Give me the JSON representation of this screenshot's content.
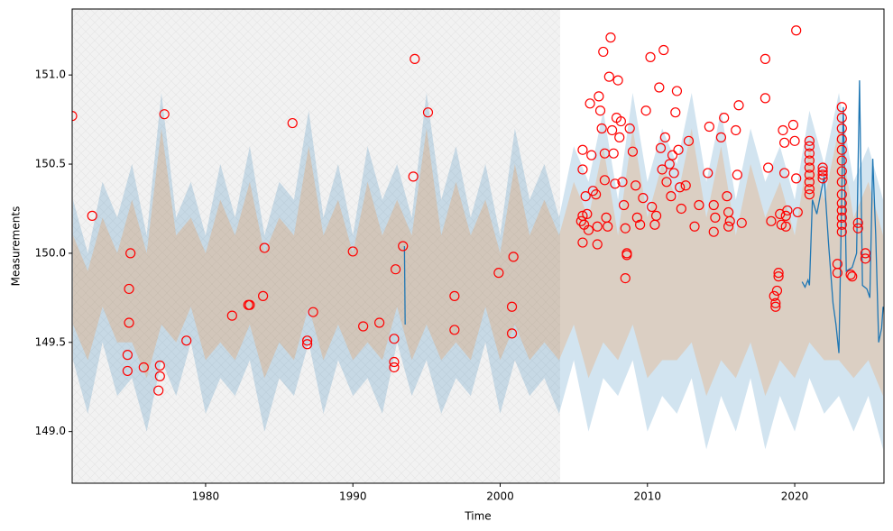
{
  "chart_data": {
    "type": "scatter",
    "xlabel": "Time",
    "ylabel": "Measurements",
    "xlim": [
      1970.94,
      2026.06
    ],
    "ylim": [
      148.71,
      151.37
    ],
    "xticks": [
      1980,
      1990,
      2000,
      2010,
      2020
    ],
    "yticks": [
      {
        "value": 149,
        "label": "149.0"
      },
      149.5,
      {
        "value": 150,
        "label": "150.0"
      },
      150.5,
      {
        "value": 151,
        "label": "151.0"
      }
    ],
    "span": {
      "x": [
        1970.94,
        2004.07
      ],
      "color": "#f2f2f2"
    },
    "series": [
      {
        "type": "band",
        "color": "#1f77b4",
        "x": [
          1971,
          1972,
          1973,
          1974,
          1975,
          1976,
          1977,
          1978,
          1979,
          1980,
          1981,
          1982,
          1983,
          1984,
          1985,
          1986,
          1987,
          1988,
          1989,
          1990,
          1991,
          1992,
          1993,
          1994,
          1995,
          1996,
          1997,
          1998,
          1999,
          2000,
          2001,
          2002,
          2003,
          2004,
          2005,
          2006,
          2007,
          2008,
          2009,
          2010,
          2011,
          2012,
          2013,
          2014,
          2015,
          2016,
          2017,
          2018,
          2019,
          2020,
          2021,
          2022,
          2023,
          2024,
          2025,
          2026
        ],
        "upper": [
          150.3,
          150.0,
          150.4,
          150.2,
          150.5,
          150.1,
          150.9,
          150.2,
          150.4,
          150.1,
          150.5,
          150.2,
          150.6,
          150.1,
          150.4,
          150.3,
          150.8,
          150.2,
          150.5,
          150.1,
          150.6,
          150.3,
          150.5,
          150.2,
          150.9,
          150.3,
          150.6,
          150.2,
          150.5,
          150.1,
          150.7,
          150.3,
          150.5,
          150.2,
          150.6,
          150.4,
          150.8,
          150.3,
          150.9,
          150.4,
          150.7,
          150.5,
          150.9,
          150.4,
          150.8,
          150.3,
          150.7,
          150.4,
          150.6,
          150.3,
          150.8,
          150.5,
          150.9,
          150.4,
          150.6,
          150.3
        ],
        "lower": [
          149.4,
          149.1,
          149.5,
          149.2,
          149.3,
          149.0,
          149.4,
          149.2,
          149.5,
          149.1,
          149.3,
          149.2,
          149.4,
          149.0,
          149.3,
          149.2,
          149.5,
          149.1,
          149.4,
          149.2,
          149.3,
          149.1,
          149.5,
          149.2,
          149.4,
          149.1,
          149.3,
          149.2,
          149.5,
          149.1,
          149.4,
          149.2,
          149.3,
          149.1,
          149.4,
          149.0,
          149.3,
          149.2,
          149.4,
          149.0,
          149.2,
          149.1,
          149.3,
          148.9,
          149.2,
          149.0,
          149.3,
          148.9,
          149.2,
          149.0,
          149.3,
          149.1,
          149.2,
          149.0,
          149.2,
          148.9
        ]
      },
      {
        "type": "band",
        "color": "#ff7f0e",
        "x": [
          1971,
          1972,
          1973,
          1974,
          1975,
          1976,
          1977,
          1978,
          1979,
          1980,
          1981,
          1982,
          1983,
          1984,
          1985,
          1986,
          1987,
          1988,
          1989,
          1990,
          1991,
          1992,
          1993,
          1994,
          1995,
          1996,
          1997,
          1998,
          1999,
          2000,
          2001,
          2002,
          2003,
          2004,
          2005,
          2006,
          2007,
          2008,
          2009,
          2010,
          2011,
          2012,
          2013,
          2014,
          2015,
          2016,
          2017,
          2018,
          2019,
          2020,
          2021,
          2022,
          2023,
          2024,
          2025,
          2026
        ],
        "upper": [
          150.1,
          149.9,
          150.2,
          150.0,
          150.3,
          150.0,
          150.7,
          150.1,
          150.2,
          150.0,
          150.3,
          150.1,
          150.4,
          150.0,
          150.2,
          150.1,
          150.6,
          150.1,
          150.3,
          150.0,
          150.4,
          150.1,
          150.3,
          150.1,
          150.7,
          150.1,
          150.4,
          150.1,
          150.3,
          150.0,
          150.5,
          150.1,
          150.3,
          150.1,
          150.4,
          150.2,
          150.6,
          150.1,
          150.7,
          150.2,
          150.5,
          150.3,
          150.7,
          150.2,
          150.6,
          150.1,
          150.5,
          150.2,
          150.4,
          150.1,
          150.6,
          150.3,
          150.7,
          150.2,
          150.4,
          150.1
        ],
        "lower": [
          149.6,
          149.4,
          149.7,
          149.5,
          149.5,
          149.3,
          149.6,
          149.5,
          149.7,
          149.4,
          149.5,
          149.4,
          149.6,
          149.3,
          149.5,
          149.4,
          149.7,
          149.4,
          149.6,
          149.4,
          149.5,
          149.4,
          149.7,
          149.4,
          149.6,
          149.4,
          149.5,
          149.4,
          149.7,
          149.4,
          149.6,
          149.4,
          149.5,
          149.4,
          149.6,
          149.3,
          149.5,
          149.4,
          149.6,
          149.3,
          149.4,
          149.4,
          149.5,
          149.2,
          149.4,
          149.3,
          149.5,
          149.2,
          149.4,
          149.3,
          149.5,
          149.4,
          149.4,
          149.3,
          149.4,
          149.2
        ]
      },
      {
        "type": "line",
        "color": "#1f77b4",
        "x": [
          1993.5,
          1993.55
        ],
        "values": [
          150.04,
          149.6
        ]
      },
      {
        "type": "line",
        "color": "#1f77b4",
        "x": [
          2020.5,
          2020.7,
          2020.9,
          2021.0,
          2021.2,
          2021.5,
          2021.8,
          2022.0,
          2022.3,
          2022.6,
          2022.8,
          2023.0,
          2023.1,
          2023.3,
          2023.5,
          2023.9,
          2024.2,
          2024.4,
          2024.6,
          2024.9,
          2025.1,
          2025.3,
          2025.5,
          2025.7,
          2025.9,
          2026.0
        ],
        "values": [
          149.84,
          149.81,
          149.85,
          149.82,
          150.3,
          150.22,
          150.35,
          150.43,
          150.05,
          149.72,
          149.6,
          149.44,
          149.9,
          150.82,
          149.9,
          149.92,
          150.0,
          150.97,
          149.82,
          149.8,
          149.75,
          150.53,
          150.1,
          149.5,
          149.58,
          149.7
        ]
      },
      {
        "type": "points",
        "color": "#ff0000",
        "x": [
          1970.94,
          1972.3,
          1974.9,
          1974.8,
          1974.8,
          1974.7,
          1974.7,
          1975.8,
          1976.8,
          1976.9,
          1976.9,
          1977.2,
          1978.7,
          1981.8,
          1982.9,
          1983.0,
          1984.0,
          1983.9,
          1985.9,
          1986.9,
          1986.9,
          1987.3,
          1990.0,
          1990.7,
          1991.8,
          1992.8,
          1992.8,
          1992.8,
          1992.9,
          1993.4,
          1994.1,
          1994.2,
          1995.1,
          1996.9,
          1996.9,
          1999.9,
          2000.9,
          2000.8,
          2000.8,
          2005.6,
          2005.5,
          2005.6,
          2005.6,
          2005.8,
          2005.9,
          2005.7,
          2006.0,
          2005.6,
          2006.1,
          2006.2,
          2006.3,
          2006.5,
          2006.6,
          2006.6,
          2006.7,
          2006.8,
          2006.9,
          2007.0,
          2007.1,
          2007.1,
          2007.2,
          2007.3,
          2007.4,
          2007.5,
          2007.6,
          2007.7,
          2007.8,
          2007.9,
          2008.0,
          2008.1,
          2008.2,
          2008.3,
          2008.4,
          2008.5,
          2008.6,
          2008.6,
          2008.5,
          2008.8,
          2009.0,
          2009.2,
          2009.3,
          2009.5,
          2009.7,
          2009.9,
          2010.2,
          2010.3,
          2010.5,
          2010.6,
          2010.8,
          2010.9,
          2011.0,
          2011.1,
          2011.2,
          2011.3,
          2011.5,
          2011.6,
          2011.7,
          2011.8,
          2011.9,
          2012.0,
          2012.1,
          2012.2,
          2012.3,
          2012.6,
          2012.8,
          2013.2,
          2013.5,
          2014.1,
          2014.2,
          2014.5,
          2014.6,
          2014.5,
          2015.0,
          2015.2,
          2015.4,
          2015.5,
          2015.6,
          2015.5,
          2016.0,
          2016.2,
          2016.1,
          2016.4,
          2018.0,
          2018.0,
          2018.2,
          2018.4,
          2018.6,
          2018.7,
          2018.7,
          2018.8,
          2018.9,
          2018.9,
          2019.0,
          2019.1,
          2019.2,
          2019.3,
          2019.3,
          2019.4,
          2019.4,
          2019.5,
          2019.9,
          2020.0,
          2020.1,
          2020.2,
          2020.1,
          2021.0,
          2021.0,
          2021.0,
          2021.0,
          2021.0,
          2021.0,
          2021.0,
          2021.0,
          2021.0,
          2021.9,
          2021.9,
          2021.9,
          2021.9,
          2023.2,
          2023.2,
          2023.2,
          2023.2,
          2023.2,
          2023.2,
          2023.2,
          2023.2,
          2023.2,
          2023.2,
          2023.2,
          2023.2,
          2023.2,
          2023.2,
          2022.9,
          2022.9,
          2023.8,
          2023.9,
          2024.3,
          2024.3,
          2024.8,
          2024.8
        ],
        "values": [
          150.77,
          150.21,
          150.0,
          149.8,
          149.61,
          149.43,
          149.34,
          149.36,
          149.23,
          149.37,
          149.31,
          150.78,
          149.51,
          149.65,
          149.71,
          149.71,
          150.03,
          149.76,
          150.73,
          149.51,
          149.49,
          149.67,
          150.01,
          149.59,
          149.61,
          149.52,
          149.39,
          149.36,
          149.91,
          150.04,
          150.43,
          151.09,
          150.79,
          149.76,
          149.57,
          149.89,
          149.98,
          149.7,
          149.55,
          150.21,
          150.18,
          150.58,
          150.47,
          150.32,
          150.22,
          150.16,
          150.13,
          150.06,
          150.84,
          150.55,
          150.35,
          150.33,
          150.15,
          150.05,
          150.88,
          150.8,
          150.7,
          151.13,
          150.56,
          150.41,
          150.2,
          150.15,
          150.99,
          151.21,
          150.69,
          150.56,
          150.39,
          150.76,
          150.97,
          150.65,
          150.74,
          150.4,
          150.27,
          150.14,
          150.0,
          149.99,
          149.86,
          150.7,
          150.57,
          150.38,
          150.2,
          150.16,
          150.31,
          150.8,
          151.1,
          150.26,
          150.16,
          150.21,
          150.93,
          150.59,
          150.47,
          151.14,
          150.65,
          150.4,
          150.5,
          150.32,
          150.55,
          150.45,
          150.79,
          150.91,
          150.58,
          150.37,
          150.25,
          150.38,
          150.63,
          150.15,
          150.27,
          150.45,
          150.71,
          150.27,
          150.2,
          150.12,
          150.65,
          150.76,
          150.32,
          150.23,
          150.18,
          150.15,
          150.69,
          150.83,
          150.44,
          150.17,
          151.09,
          150.87,
          150.48,
          150.18,
          149.76,
          149.72,
          149.7,
          149.79,
          149.87,
          149.89,
          150.22,
          150.16,
          150.69,
          150.62,
          150.45,
          150.21,
          150.15,
          150.24,
          150.72,
          150.63,
          150.42,
          150.23,
          151.25,
          150.33,
          150.36,
          150.4,
          150.44,
          150.48,
          150.52,
          150.56,
          150.6,
          150.63,
          150.42,
          150.44,
          150.46,
          150.48,
          150.12,
          150.16,
          150.2,
          150.24,
          150.28,
          150.33,
          150.4,
          150.46,
          150.52,
          150.58,
          150.64,
          150.7,
          150.76,
          150.82,
          149.94,
          149.89,
          149.88,
          149.87,
          150.14,
          150.17,
          149.97,
          150.0
        ]
      }
    ]
  }
}
